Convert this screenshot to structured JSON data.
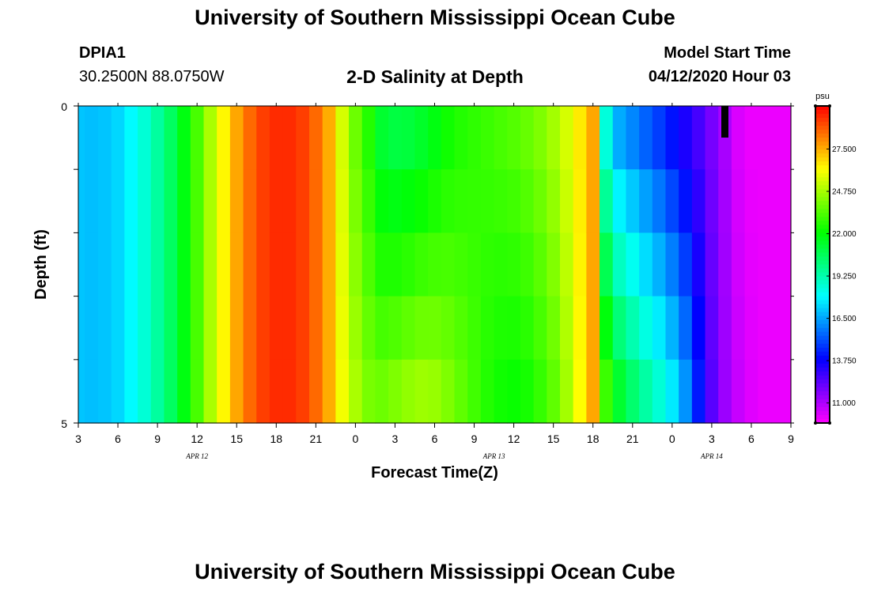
{
  "header": {
    "title": "University of Southern Mississippi Ocean Cube",
    "station_id": "DPIA1",
    "coords": "30.2500N 88.0750W",
    "chart_title": "2-D Salinity at Depth",
    "model_label": "Model Start Time",
    "model_time": "04/12/2020 Hour 03"
  },
  "footer": {
    "title": "University of Southern Mississippi Ocean Cube"
  },
  "chart_data": {
    "type": "heatmap",
    "title": "2-D Salinity at Depth",
    "xlabel": "Forecast Time(Z)",
    "ylabel": "Depth (ft)",
    "x_tick_labels": [
      "3",
      "6",
      "9",
      "12",
      "15",
      "18",
      "21",
      "0",
      "3",
      "6",
      "9",
      "12",
      "15",
      "18",
      "21",
      "0",
      "3",
      "6",
      "9"
    ],
    "date_labels": [
      {
        "label": "APR  12",
        "hour_index": 9
      },
      {
        "label": "APR  13",
        "hour_index": 31.5
      },
      {
        "label": "APR  14",
        "hour_index": 48
      }
    ],
    "x_range_hours": [
      0,
      54
    ],
    "y_tick_labels": [
      "0",
      "5"
    ],
    "ylim": [
      0,
      5
    ],
    "depth_levels": 5,
    "colorbar": {
      "unit": "psu",
      "vmin": 9.7,
      "vmax": 30.3,
      "tick_values": [
        "27.500",
        "24.750",
        "22.000",
        "19.250",
        "16.500",
        "13.750",
        "11.000"
      ]
    },
    "profile_hours": [
      0,
      1,
      2,
      3,
      4,
      5,
      6,
      7,
      8,
      9,
      10,
      11,
      12,
      13,
      14,
      15,
      16,
      17,
      18,
      19,
      20,
      21,
      22,
      23,
      24,
      25,
      26,
      27,
      28,
      29,
      30,
      31,
      32,
      33,
      34,
      35,
      36,
      37,
      38,
      39,
      40,
      41,
      42,
      43,
      44,
      45,
      46,
      47,
      48,
      49,
      50,
      51,
      52,
      53,
      54
    ],
    "surface_salinity_psu": [
      17.0,
      16.9,
      17.0,
      17.3,
      17.9,
      18.6,
      19.5,
      20.5,
      21.8,
      23.2,
      24.8,
      26.3,
      27.6,
      28.6,
      29.3,
      29.6,
      29.6,
      29.3,
      28.6,
      27.5,
      25.5,
      23.8,
      22.6,
      21.3,
      21.0,
      21.1,
      21.4,
      21.8,
      22.3,
      22.6,
      22.8,
      23.0,
      23.2,
      23.4,
      23.7,
      24.1,
      24.7,
      25.5,
      26.5,
      27.6,
      18.5,
      16.6,
      16.0,
      15.4,
      14.8,
      14.1,
      13.4,
      12.7,
      11.9,
      11.1,
      10.3,
      10.0,
      10.0,
      10.0,
      10.0
    ],
    "bottom_salinity_psu": [
      17.0,
      16.9,
      17.0,
      17.3,
      17.9,
      18.6,
      19.5,
      20.5,
      21.8,
      23.2,
      24.8,
      26.3,
      27.6,
      28.6,
      29.3,
      29.6,
      29.6,
      29.3,
      28.6,
      27.5,
      26.0,
      24.8,
      24.0,
      23.8,
      24.1,
      24.4,
      24.6,
      24.5,
      24.1,
      23.6,
      23.1,
      22.6,
      22.3,
      22.2,
      22.4,
      22.9,
      23.6,
      24.7,
      26.2,
      27.6,
      23.0,
      21.3,
      20.3,
      19.4,
      18.6,
      17.6,
      16.2,
      14.2,
      12.4,
      11.3,
      10.6,
      10.2,
      10.0,
      10.0,
      10.0
    ]
  }
}
